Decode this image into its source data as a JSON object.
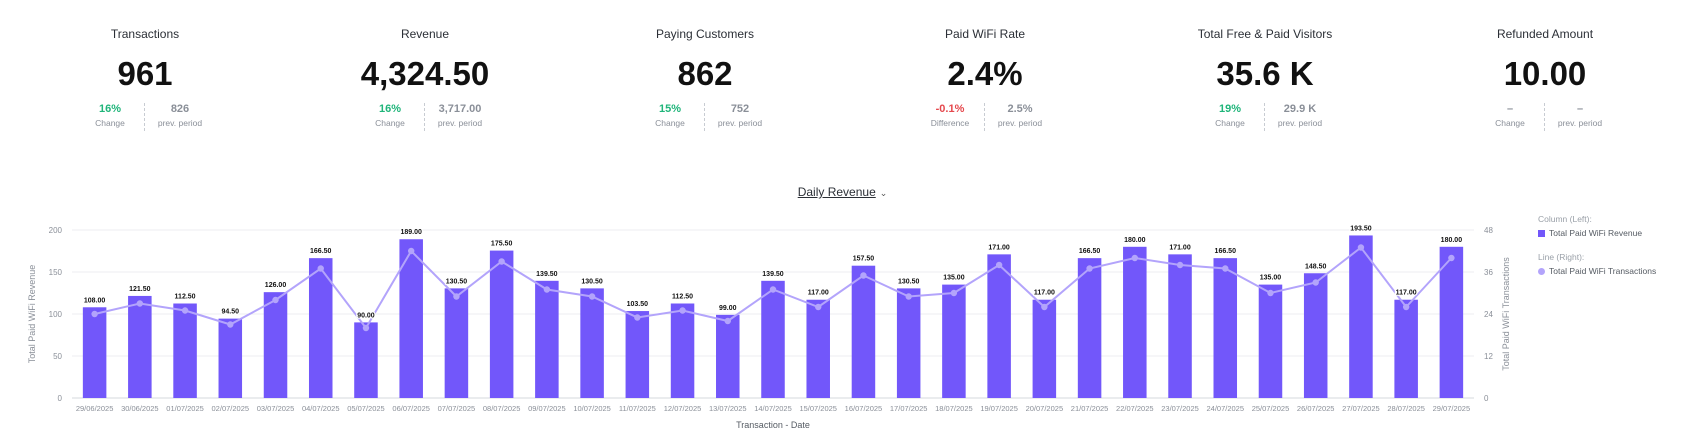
{
  "kpis": [
    {
      "label": "Transactions",
      "value": "961",
      "change": "16%",
      "change_label": "Change",
      "change_type": "pos",
      "prev": "826",
      "prev_label": "prev. period"
    },
    {
      "label": "Revenue",
      "value": "4,324.50",
      "change": "16%",
      "change_label": "Change",
      "change_type": "pos",
      "prev": "3,717.00",
      "prev_label": "prev. period"
    },
    {
      "label": "Paying Customers",
      "value": "862",
      "change": "15%",
      "change_label": "Change",
      "change_type": "pos",
      "prev": "752",
      "prev_label": "prev. period"
    },
    {
      "label": "Paid WiFi Rate",
      "value": "2.4%",
      "change": "-0.1%",
      "change_label": "Difference",
      "change_type": "neg",
      "prev": "2.5%",
      "prev_label": "prev. period"
    },
    {
      "label": "Total Free & Paid Visitors",
      "value": "35.6 K",
      "change": "19%",
      "change_label": "Change",
      "change_type": "pos",
      "prev": "29.9 K",
      "prev_label": "prev. period"
    },
    {
      "label": "Refunded Amount",
      "value": "10.00",
      "change": "–",
      "change_label": "Change",
      "change_type": "neutral",
      "prev": "–",
      "prev_label": "prev. period"
    }
  ],
  "chart_selector": {
    "label": "Daily Revenue",
    "chevron": "chevron-down-icon"
  },
  "legend": {
    "left_header": "Column (Left):",
    "left_item": "Total Paid WiFi Revenue",
    "right_header": "Line (Right):",
    "right_item": "Total Paid WiFi Transactions"
  },
  "chart_data": {
    "type": "bar",
    "xlabel": "Transaction - Date",
    "ylabel": "Total Paid WiFi Revenue",
    "y2label": "Total Paid WiFi Transactions",
    "ylim": [
      0,
      200
    ],
    "y2lim": [
      0,
      48
    ],
    "yticks": [
      0,
      50,
      100,
      150,
      200
    ],
    "y2ticks": [
      0,
      12,
      24,
      36,
      48
    ],
    "grid": true,
    "legend_position": "right",
    "bar_color": "#7257fa",
    "line_color": "#b3a4fb",
    "categories": [
      "29/06/2025",
      "30/06/2025",
      "01/07/2025",
      "02/07/2025",
      "03/07/2025",
      "04/07/2025",
      "05/07/2025",
      "06/07/2025",
      "07/07/2025",
      "08/07/2025",
      "09/07/2025",
      "10/07/2025",
      "11/07/2025",
      "12/07/2025",
      "13/07/2025",
      "14/07/2025",
      "15/07/2025",
      "16/07/2025",
      "17/07/2025",
      "18/07/2025",
      "19/07/2025",
      "20/07/2025",
      "21/07/2025",
      "22/07/2025",
      "23/07/2025",
      "24/07/2025",
      "25/07/2025",
      "26/07/2025",
      "27/07/2025",
      "28/07/2025",
      "29/07/2025"
    ],
    "series": [
      {
        "name": "Total Paid WiFi Revenue",
        "axis": "left",
        "type": "bar",
        "values": [
          108.0,
          121.5,
          112.5,
          94.5,
          126.0,
          166.5,
          90.0,
          189.0,
          130.5,
          175.5,
          139.5,
          130.5,
          103.5,
          112.5,
          99.0,
          139.5,
          117.0,
          157.5,
          130.5,
          135.0,
          171.0,
          117.0,
          166.5,
          180.0,
          171.0,
          166.5,
          135.0,
          148.5,
          193.5,
          117.0,
          180.0
        ],
        "labels": [
          "108.00",
          "121.50",
          "112.50",
          "94.50",
          "126.00",
          "166.50",
          "90.00",
          "189.00",
          "130.50",
          "175.50",
          "139.50",
          "130.50",
          "103.50",
          "112.50",
          "99.00",
          "139.50",
          "117.00",
          "157.50",
          "130.50",
          "135.00",
          "171.00",
          "117.00",
          "166.50",
          "180.00",
          "171.00",
          "166.50",
          "135.00",
          "148.50",
          "193.50",
          "117.00",
          "180.00"
        ]
      },
      {
        "name": "Total Paid WiFi Transactions",
        "axis": "right",
        "type": "line",
        "values": [
          24,
          27,
          25,
          21,
          28,
          37,
          20,
          42,
          29,
          39,
          31,
          29,
          23,
          25,
          22,
          31,
          26,
          35,
          29,
          30,
          38,
          26,
          37,
          40,
          38,
          37,
          30,
          33,
          43,
          26,
          40
        ]
      }
    ]
  }
}
